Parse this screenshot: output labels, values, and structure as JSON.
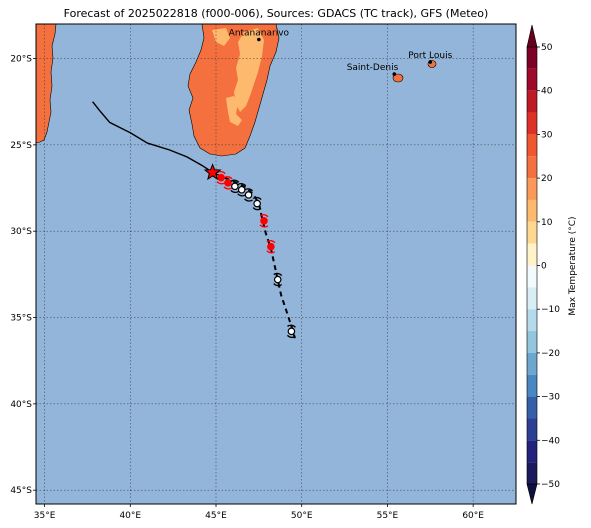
{
  "title": "Forecast of 2025022818 (f000-006), Sources: GDACS (TC track), GFS (Meteo)",
  "map": {
    "lon_range": [
      34.5,
      62.5
    ],
    "lat_range": [
      -45.8,
      -18.0
    ],
    "lon_ticks": [
      35,
      40,
      45,
      50,
      55,
      60
    ],
    "lon_tick_labels": [
      "35°E",
      "40°E",
      "45°E",
      "50°E",
      "55°E",
      "60°E"
    ],
    "lat_ticks": [
      -20,
      -25,
      -30,
      -35,
      -40,
      -45
    ],
    "lat_tick_labels": [
      "20°S",
      "25°S",
      "30°S",
      "35°S",
      "40°S",
      "45°S"
    ],
    "grid": true,
    "ocean_color": "#92b5d9",
    "land_color": "#f4703f",
    "warm_land_color": "#fdb96e"
  },
  "cities": [
    {
      "name": "Antananarivo",
      "lon": 47.5,
      "lat": -18.9
    },
    {
      "name": "Port Louis",
      "lon": 57.5,
      "lat": -20.2
    },
    {
      "name": "Saint-Denis",
      "lon": 55.4,
      "lat": -20.9
    }
  ],
  "track": {
    "past": [
      [
        37.8,
        -22.5
      ],
      [
        38.2,
        -23.0
      ],
      [
        38.8,
        -23.7
      ],
      [
        40.0,
        -24.3
      ],
      [
        41.0,
        -24.9
      ],
      [
        42.3,
        -25.3
      ],
      [
        43.3,
        -25.7
      ],
      [
        44.2,
        -26.2
      ],
      [
        44.8,
        -26.6
      ],
      [
        45.5,
        -26.9
      ]
    ],
    "forecast": [
      [
        45.5,
        -26.9
      ],
      [
        46.2,
        -27.2
      ],
      [
        46.8,
        -27.5
      ],
      [
        47.2,
        -27.9
      ],
      [
        47.5,
        -28.4
      ],
      [
        47.7,
        -29.3
      ],
      [
        47.9,
        -30.1
      ],
      [
        48.2,
        -31.0
      ],
      [
        48.4,
        -31.9
      ],
      [
        48.6,
        -32.8
      ],
      [
        48.8,
        -33.7
      ],
      [
        49.1,
        -34.6
      ],
      [
        49.4,
        -35.5
      ],
      [
        49.6,
        -36.2
      ]
    ],
    "current_position": {
      "lon": 44.8,
      "lat": -26.6
    },
    "symbols": [
      {
        "lon": 45.3,
        "lat": -26.9,
        "color": "red"
      },
      {
        "lon": 45.7,
        "lat": -27.2,
        "color": "red"
      },
      {
        "lon": 46.1,
        "lat": -27.4,
        "color": "white"
      },
      {
        "lon": 46.5,
        "lat": -27.6,
        "color": "white"
      },
      {
        "lon": 46.9,
        "lat": -27.9,
        "color": "white"
      },
      {
        "lon": 47.4,
        "lat": -28.4,
        "color": "white"
      },
      {
        "lon": 47.8,
        "lat": -29.4,
        "color": "red"
      },
      {
        "lon": 48.2,
        "lat": -30.9,
        "color": "red"
      },
      {
        "lon": 48.6,
        "lat": -32.8,
        "color": "white"
      },
      {
        "lon": 49.4,
        "lat": -35.8,
        "color": "white"
      }
    ]
  },
  "colorbar": {
    "label": "Max Temperature (°C)",
    "ticks": [
      50,
      40,
      30,
      20,
      10,
      0,
      -10,
      -20,
      -30,
      -40,
      -50
    ],
    "tick_labels": [
      "50",
      "40",
      "30",
      "20",
      "10",
      "0",
      "−10",
      "−20",
      "−30",
      "−40",
      "−50"
    ],
    "levels": [
      {
        "from": 45,
        "to": 50,
        "color": "#7f0026"
      },
      {
        "from": 40,
        "to": 45,
        "color": "#9e0a2b"
      },
      {
        "from": 35,
        "to": 40,
        "color": "#bd1a26"
      },
      {
        "from": 30,
        "to": 35,
        "color": "#dd3026"
      },
      {
        "from": 25,
        "to": 30,
        "color": "#f0562f"
      },
      {
        "from": 20,
        "to": 25,
        "color": "#f4703f"
      },
      {
        "from": 15,
        "to": 20,
        "color": "#fb9a58"
      },
      {
        "from": 10,
        "to": 15,
        "color": "#fdb96e"
      },
      {
        "from": 5,
        "to": 10,
        "color": "#fed891"
      },
      {
        "from": 0,
        "to": 5,
        "color": "#fff3c7"
      },
      {
        "from": -5,
        "to": 0,
        "color": "#f2fafd"
      },
      {
        "from": -10,
        "to": -5,
        "color": "#d8eef5"
      },
      {
        "from": -15,
        "to": -10,
        "color": "#b4daeb"
      },
      {
        "from": -20,
        "to": -15,
        "color": "#92c5de"
      },
      {
        "from": -25,
        "to": -20,
        "color": "#6da6cf"
      },
      {
        "from": -30,
        "to": -25,
        "color": "#4a86bf"
      },
      {
        "from": -35,
        "to": -30,
        "color": "#3560a8"
      },
      {
        "from": -40,
        "to": -35,
        "color": "#2b3f93"
      },
      {
        "from": -45,
        "to": -40,
        "color": "#23237e"
      },
      {
        "from": -50,
        "to": -45,
        "color": "#1a1a5c"
      }
    ],
    "extend_max_color": "#67001f",
    "extend_min_color": "#0f0f40"
  }
}
